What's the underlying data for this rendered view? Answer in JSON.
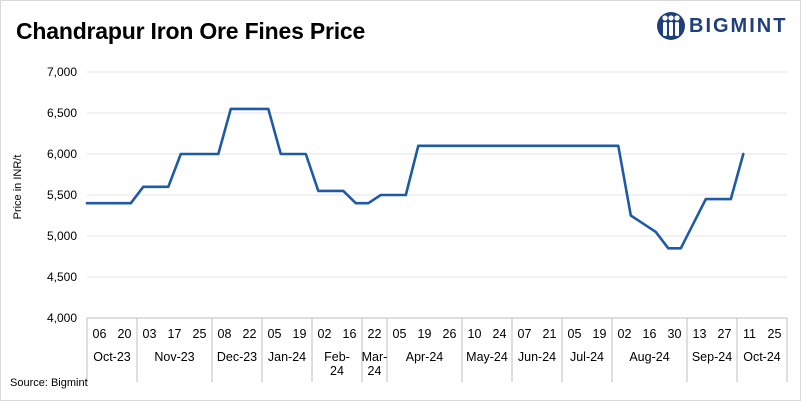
{
  "title": "Chandrapur Iron Ore Fines Price",
  "logo_text": "BIGMINT",
  "source": "Source: Bigmint",
  "colors": {
    "line": "#1f5aa6",
    "grid": "#e6e6e6",
    "logo": "#1f3f7a"
  },
  "chart_data": {
    "type": "line",
    "title": "Chandrapur Iron Ore Fines Price",
    "xlabel": "",
    "ylabel": "Price in INR/t",
    "ylim": [
      4000,
      7000
    ],
    "yticks": [
      4000,
      4500,
      5000,
      5500,
      6000,
      6500,
      7000
    ],
    "ytick_labels": [
      "4,000",
      "4,500",
      "5,000",
      "5,500",
      "6,000",
      "6,500",
      "7,000"
    ],
    "grid": true,
    "legend": "none",
    "x": [
      "06",
      "20",
      "03",
      "17",
      "25",
      "08",
      "22",
      "05",
      "19",
      "02",
      "16",
      "22",
      "05",
      "19",
      "26",
      "10",
      "24",
      "07",
      "21",
      "05",
      "19",
      "02",
      "16",
      "30",
      "13",
      "27",
      "11",
      "25"
    ],
    "months": [
      {
        "label": "Oct-23",
        "start": 0,
        "end": 1
      },
      {
        "label": "Nov-23",
        "start": 2,
        "end": 4
      },
      {
        "label": "Dec-23",
        "start": 5,
        "end": 6
      },
      {
        "label": "Jan-24",
        "start": 7,
        "end": 8
      },
      {
        "label": "Feb-\n24",
        "start": 9,
        "end": 10
      },
      {
        "label": "Mar-\n24",
        "start": 11,
        "end": 11
      },
      {
        "label": "Apr-24",
        "start": 12,
        "end": 14
      },
      {
        "label": "May-24",
        "start": 15,
        "end": 16
      },
      {
        "label": "Jun-24",
        "start": 17,
        "end": 18
      },
      {
        "label": "Jul-24",
        "start": 19,
        "end": 20
      },
      {
        "label": "Aug-24",
        "start": 21,
        "end": 23
      },
      {
        "label": "Sep-24",
        "start": 24,
        "end": 25
      },
      {
        "label": "Oct-24",
        "start": 26,
        "end": 27
      }
    ],
    "series": [
      {
        "points": [
          [
            0,
            5400
          ],
          [
            3.5,
            5400
          ],
          [
            4.5,
            5600
          ],
          [
            6.5,
            5600
          ],
          [
            7.5,
            6000
          ],
          [
            10.5,
            6000
          ],
          [
            11.5,
            6550
          ],
          [
            14.5,
            6550
          ],
          [
            15.5,
            6000
          ],
          [
            17.5,
            6000
          ],
          [
            18.5,
            5550
          ],
          [
            20.5,
            5550
          ],
          [
            21.5,
            5400
          ],
          [
            22.5,
            5400
          ],
          [
            23.5,
            5500
          ],
          [
            25.5,
            5500
          ],
          [
            26.5,
            6100
          ],
          [
            42.5,
            6100
          ],
          [
            43.5,
            5250
          ],
          [
            45.5,
            5050
          ],
          [
            46.5,
            4850
          ],
          [
            47.5,
            4850
          ],
          [
            48.5,
            5150
          ],
          [
            49.5,
            5450
          ],
          [
            51.5,
            5450
          ],
          [
            52.5,
            6000
          ]
        ]
      }
    ]
  }
}
